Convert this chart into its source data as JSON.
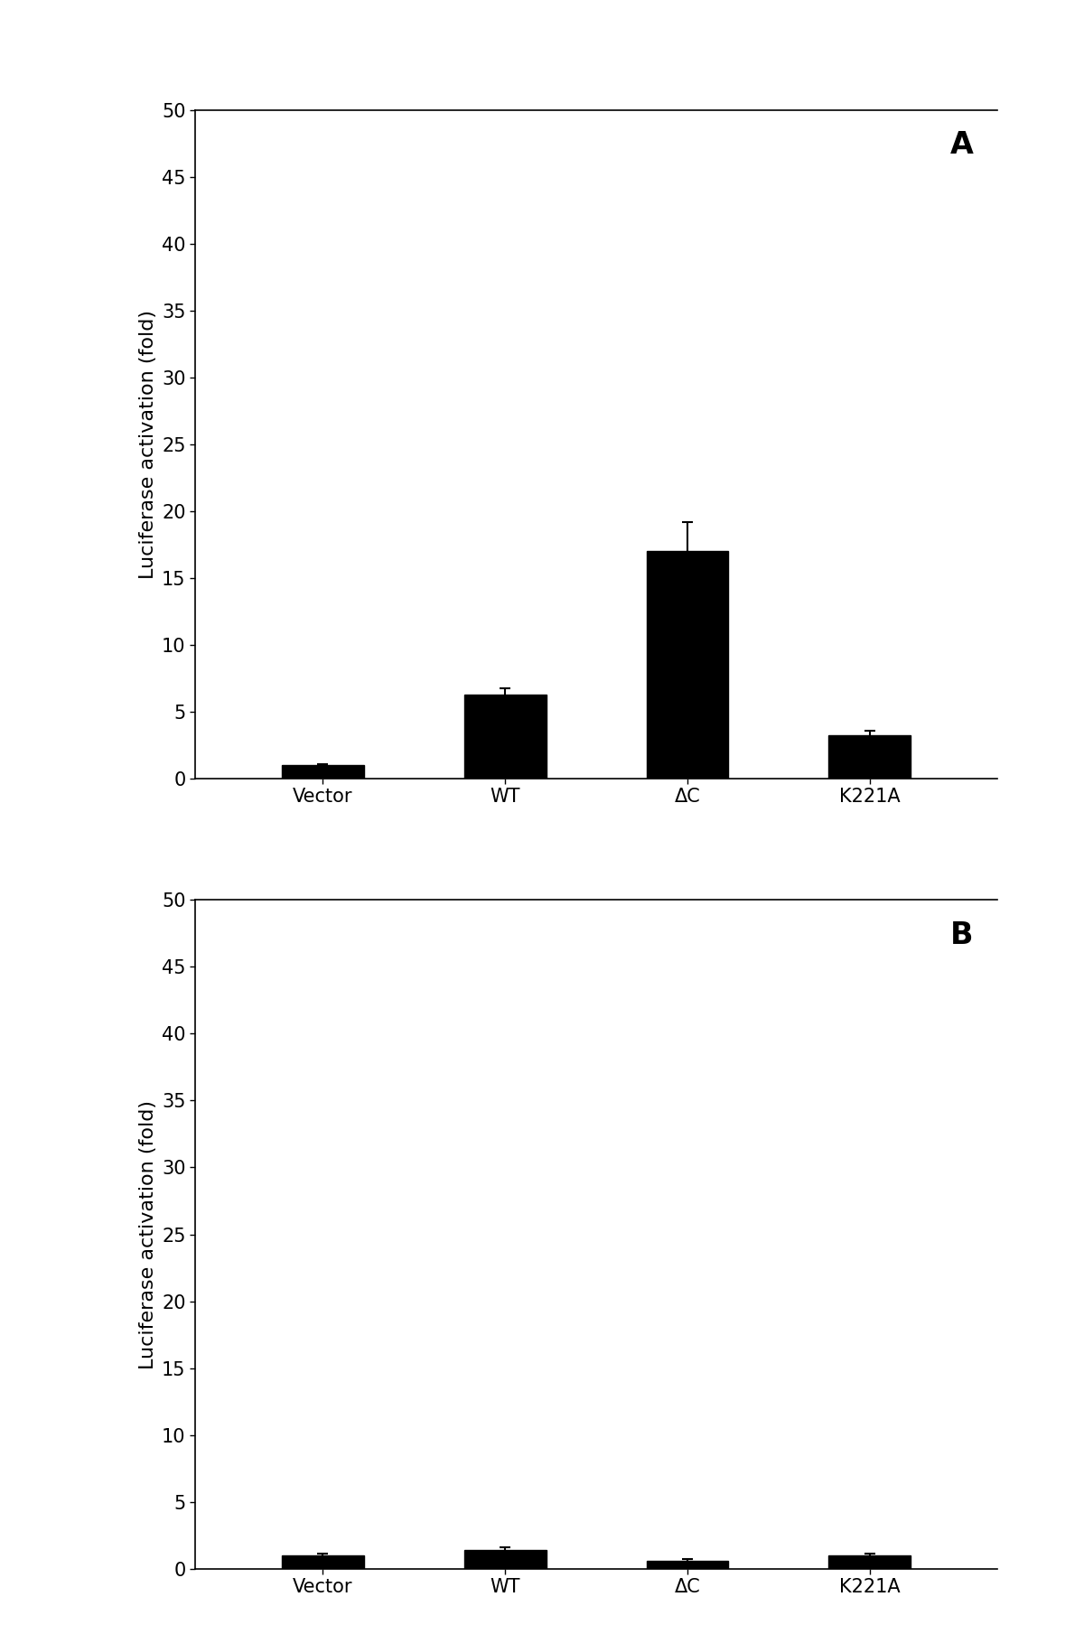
{
  "panel_A": {
    "categories": [
      "Vector",
      "WT",
      "ΔC",
      "K221A"
    ],
    "values": [
      1.0,
      6.3,
      17.0,
      3.2
    ],
    "errors": [
      0.1,
      0.45,
      2.2,
      0.35
    ],
    "label": "A",
    "ylabel": "Luciferase activation (fold)",
    "ylim": [
      0,
      50
    ],
    "yticks": [
      0,
      5,
      10,
      15,
      20,
      25,
      30,
      35,
      40,
      45,
      50
    ]
  },
  "panel_B": {
    "categories": [
      "Vector",
      "WT",
      "ΔC",
      "K221A"
    ],
    "values": [
      1.0,
      1.4,
      0.6,
      1.0
    ],
    "errors": [
      0.1,
      0.2,
      0.1,
      0.1
    ],
    "label": "B",
    "ylabel": "Luciferase activation (fold)",
    "ylim": [
      0,
      50
    ],
    "yticks": [
      0,
      5,
      10,
      15,
      20,
      25,
      30,
      35,
      40,
      45,
      50
    ]
  },
  "bar_color": "#000000",
  "bar_width": 0.45,
  "bar_color_edge": "#000000",
  "background_color": "#ffffff",
  "tick_fontsize": 15,
  "ylabel_fontsize": 16,
  "panel_label_fontsize": 24,
  "xtick_fontsize": 15
}
